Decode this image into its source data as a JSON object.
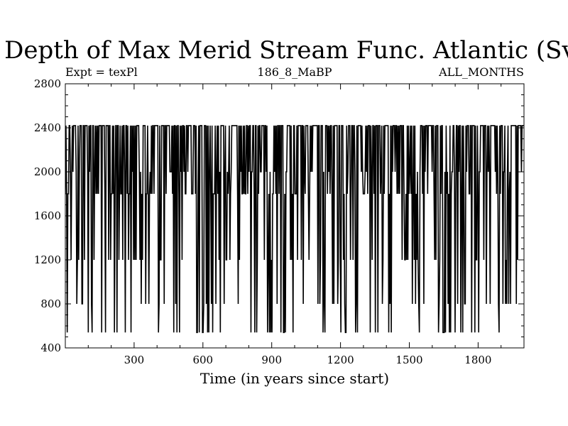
{
  "chart_data": {
    "type": "line",
    "title": "Depth of Max Merid Stream Func. Atlantic (Sv)",
    "subtitle_left": "Expt = texPl",
    "subtitle_center": "186_8_MaBP",
    "subtitle_right": "ALL_MONTHS",
    "xlabel": "Time (in years since start)",
    "ylabel": "",
    "xlim": [
      0,
      2000
    ],
    "ylim": [
      400,
      2800
    ],
    "x_ticks": [
      300,
      600,
      900,
      1200,
      1500,
      1800
    ],
    "y_ticks": [
      400,
      800,
      1200,
      1600,
      2000,
      2400,
      2800
    ],
    "grid": false,
    "series": [
      {
        "values_sample": [
          1800,
          2420,
          540,
          2420,
          1200,
          2420,
          800,
          2420,
          1800,
          2420,
          540,
          2420,
          1200,
          2000,
          2420,
          540,
          2420,
          800,
          2420,
          1800,
          2420,
          1200,
          2420,
          540,
          2420,
          2000,
          2420,
          800,
          2420,
          1800,
          2420,
          540,
          2420,
          1200,
          2420,
          2000,
          2420,
          540,
          2420,
          800
        ]
      }
    ],
    "color": "#000000"
  }
}
